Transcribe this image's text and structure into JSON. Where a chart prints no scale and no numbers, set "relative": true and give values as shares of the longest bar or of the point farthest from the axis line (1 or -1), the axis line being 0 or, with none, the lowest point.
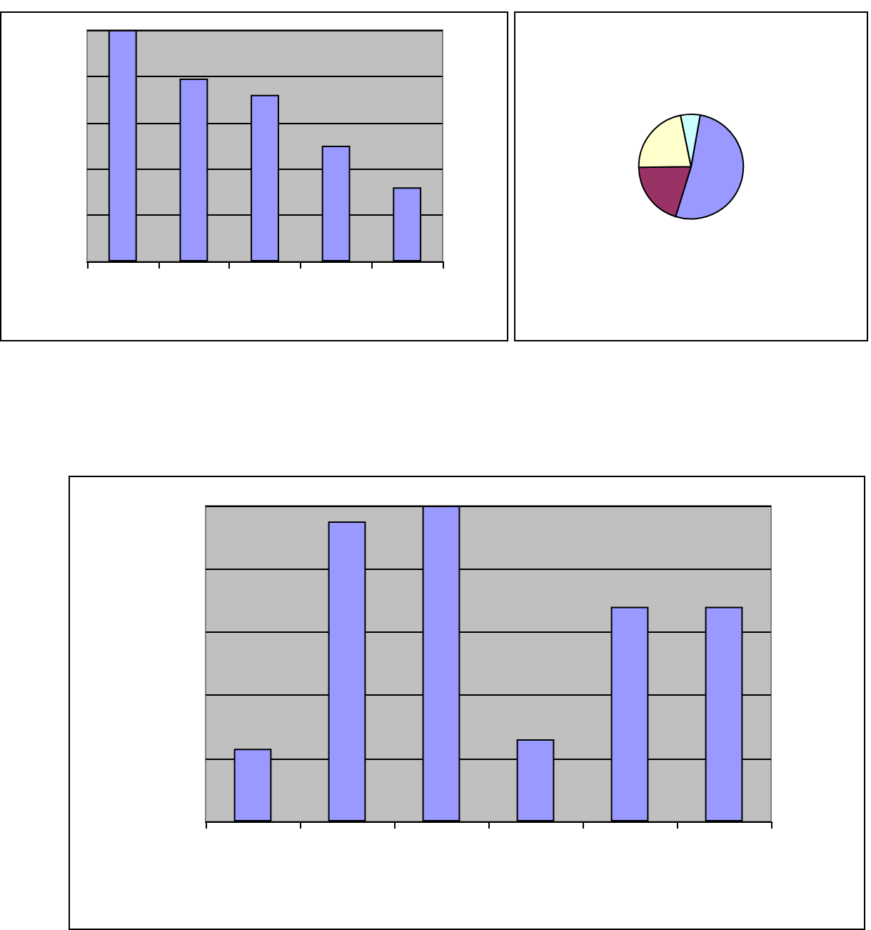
{
  "chart_data": [
    {
      "type": "bar",
      "relative": true,
      "categories": [
        null,
        null,
        null,
        null,
        null
      ],
      "values": [
        1,
        0.79,
        0.72,
        0.5,
        0.32
      ],
      "color": "#9999ff",
      "grid": "y"
    },
    {
      "type": "pie",
      "categories": [
        null,
        null,
        null,
        null
      ],
      "values": [
        52,
        20,
        22,
        6
      ],
      "colors": [
        "#9999ff",
        "#993366",
        "#ffffcc",
        "#ccffff"
      ]
    },
    {
      "type": "bar",
      "relative": true,
      "categories": [
        null,
        null,
        null,
        null,
        null,
        null
      ],
      "values": [
        0.23,
        0.95,
        1,
        0.26,
        0.68,
        0.68
      ],
      "color": "#9999ff",
      "grid": "y"
    }
  ]
}
